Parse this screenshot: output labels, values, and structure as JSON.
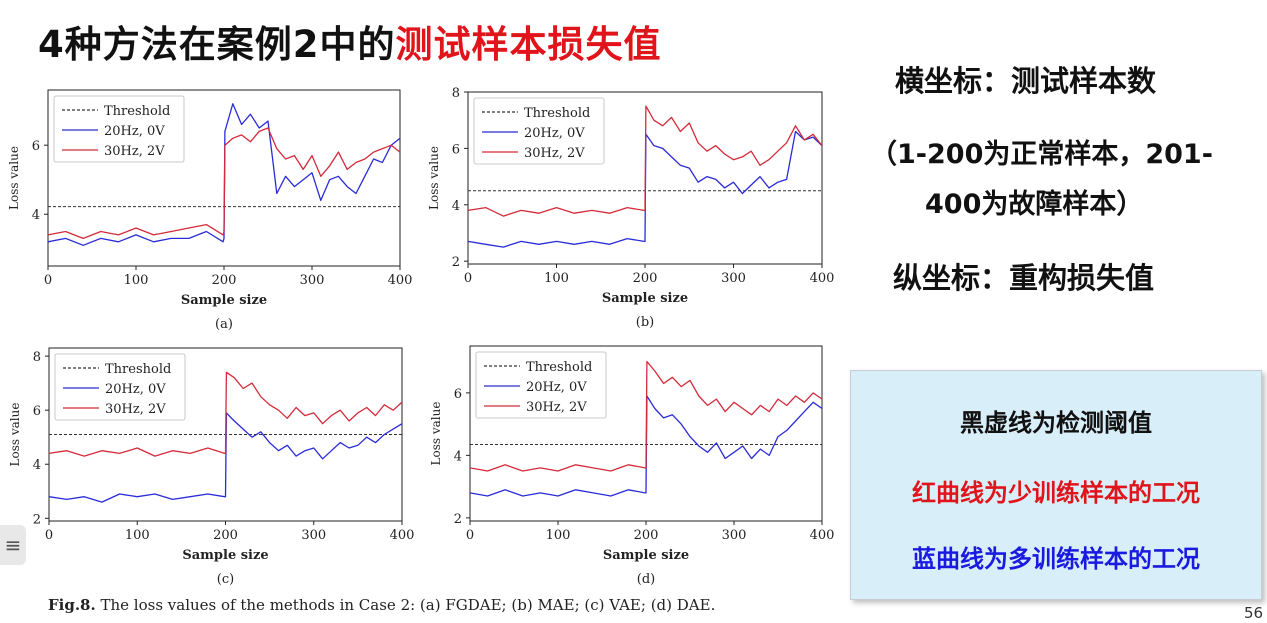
{
  "slide": {
    "title_part1": "4种方法在案例2中的",
    "title_part2": "测试样本损失值",
    "note_x1": "横坐标：测试样本数",
    "note_x2": "（1-200为正常样本，201-",
    "note_x3": "400为故障样本）",
    "note_y": "纵坐标：重构损失值",
    "legend_black": "黑虚线为检测阈值",
    "legend_red": "红曲线为少训练样本的工况",
    "legend_blue": "蓝曲线为多训练样本的工况",
    "caption_bold": "Fig.8.",
    "caption_rest": " The loss values of the methods in Case 2: (a) FGDAE; (b) MAE; (c) VAE; (d) DAE.",
    "page_number": "56",
    "menu_icon": "≡"
  },
  "colors": {
    "title_red": "#e0141a",
    "red_series": "#d42a3a",
    "blue_series": "#2a2bd8",
    "threshold": "#333333",
    "legend_box_bg": "#d8eef8"
  },
  "chart_data": [
    {
      "type": "line",
      "panel_label": "(a)",
      "xlabel": "Sample size",
      "ylabel": "Loss value",
      "xlim": [
        0,
        400
      ],
      "ylim": [
        2.5,
        7.6
      ],
      "xticks": [
        0,
        100,
        200,
        300,
        400
      ],
      "yticks": [
        4,
        6
      ],
      "threshold": 4.22,
      "legend": [
        "Threshold",
        "20Hz, 0V",
        "30Hz, 2V"
      ],
      "legend_position": "top-left",
      "series": [
        {
          "name": "20Hz, 0V",
          "color": "#2a2bd8",
          "x": [
            0,
            20,
            40,
            60,
            80,
            100,
            120,
            140,
            160,
            180,
            199,
            200,
            201,
            210,
            220,
            230,
            240,
            250,
            260,
            270,
            280,
            290,
            300,
            310,
            320,
            330,
            340,
            350,
            360,
            370,
            380,
            390,
            400
          ],
          "y": [
            3.2,
            3.3,
            3.1,
            3.3,
            3.2,
            3.4,
            3.2,
            3.3,
            3.3,
            3.5,
            3.2,
            3.3,
            6.4,
            7.2,
            6.6,
            6.9,
            6.5,
            6.7,
            4.6,
            5.1,
            4.8,
            5.0,
            5.2,
            4.4,
            5.0,
            5.1,
            4.8,
            4.6,
            5.1,
            5.6,
            5.5,
            6.0,
            6.2
          ]
        },
        {
          "name": "30Hz, 2V",
          "color": "#d42a3a",
          "x": [
            0,
            20,
            40,
            60,
            80,
            100,
            120,
            140,
            160,
            180,
            199,
            200,
            201,
            210,
            220,
            230,
            240,
            250,
            260,
            270,
            280,
            290,
            300,
            310,
            320,
            330,
            340,
            350,
            360,
            370,
            380,
            390,
            400
          ],
          "y": [
            3.4,
            3.5,
            3.3,
            3.5,
            3.4,
            3.6,
            3.4,
            3.5,
            3.6,
            3.7,
            3.4,
            3.5,
            6.0,
            6.2,
            6.3,
            6.1,
            6.4,
            6.5,
            5.9,
            5.6,
            5.7,
            5.3,
            5.7,
            5.1,
            5.4,
            5.8,
            5.3,
            5.5,
            5.6,
            5.8,
            5.9,
            6.0,
            5.8
          ]
        }
      ]
    },
    {
      "type": "line",
      "panel_label": "(b)",
      "xlabel": "Sample size",
      "ylabel": "Loss value",
      "xlim": [
        0,
        400
      ],
      "ylim": [
        1.9,
        8.0
      ],
      "xticks": [
        0,
        100,
        200,
        300,
        400
      ],
      "yticks": [
        2,
        4,
        6,
        8
      ],
      "threshold": 4.5,
      "legend": [
        "Threshold",
        "20Hz, 0V",
        "30Hz, 2V"
      ],
      "legend_position": "top-left",
      "series": [
        {
          "name": "20Hz, 0V",
          "color": "#2a2bd8",
          "x": [
            0,
            20,
            40,
            60,
            80,
            100,
            120,
            140,
            160,
            180,
            199,
            200,
            201,
            210,
            220,
            230,
            240,
            250,
            260,
            270,
            280,
            290,
            300,
            310,
            320,
            330,
            340,
            350,
            360,
            370,
            380,
            390,
            400
          ],
          "y": [
            2.7,
            2.6,
            2.5,
            2.7,
            2.6,
            2.7,
            2.6,
            2.7,
            2.6,
            2.8,
            2.7,
            2.7,
            6.5,
            6.1,
            6.0,
            5.7,
            5.4,
            5.3,
            4.8,
            5.0,
            4.9,
            4.6,
            4.8,
            4.4,
            4.7,
            5.0,
            4.6,
            4.8,
            4.9,
            6.6,
            6.3,
            6.4,
            6.1
          ]
        },
        {
          "name": "30Hz, 2V",
          "color": "#d42a3a",
          "x": [
            0,
            20,
            40,
            60,
            80,
            100,
            120,
            140,
            160,
            180,
            199,
            200,
            201,
            210,
            220,
            230,
            240,
            250,
            260,
            270,
            280,
            290,
            300,
            310,
            320,
            330,
            340,
            350,
            360,
            370,
            380,
            390,
            400
          ],
          "y": [
            3.8,
            3.9,
            3.6,
            3.8,
            3.7,
            3.9,
            3.7,
            3.8,
            3.7,
            3.9,
            3.8,
            3.8,
            7.5,
            7.0,
            6.8,
            7.1,
            6.6,
            6.9,
            6.2,
            5.9,
            6.1,
            5.8,
            5.6,
            5.7,
            5.9,
            5.4,
            5.6,
            5.9,
            6.2,
            6.8,
            6.3,
            6.5,
            6.1
          ]
        }
      ]
    },
    {
      "type": "line",
      "panel_label": "(c)",
      "xlabel": "Sample size",
      "ylabel": "Loss value",
      "xlim": [
        0,
        400
      ],
      "ylim": [
        1.9,
        8.3
      ],
      "xticks": [
        0,
        100,
        200,
        300,
        400
      ],
      "yticks": [
        2,
        4,
        6,
        8
      ],
      "threshold": 5.1,
      "legend": [
        "Threshold",
        "20Hz, 0V",
        "30Hz, 2V"
      ],
      "legend_position": "top-left",
      "series": [
        {
          "name": "20Hz, 0V",
          "color": "#2a2bd8",
          "x": [
            0,
            20,
            40,
            60,
            80,
            100,
            120,
            140,
            160,
            180,
            199,
            200,
            201,
            210,
            220,
            230,
            240,
            250,
            260,
            270,
            280,
            290,
            300,
            310,
            320,
            330,
            340,
            350,
            360,
            370,
            380,
            390,
            400
          ],
          "y": [
            2.8,
            2.7,
            2.8,
            2.6,
            2.9,
            2.8,
            2.9,
            2.7,
            2.8,
            2.9,
            2.8,
            2.8,
            5.9,
            5.6,
            5.3,
            5.0,
            5.2,
            4.8,
            4.5,
            4.7,
            4.3,
            4.5,
            4.6,
            4.2,
            4.5,
            4.8,
            4.6,
            4.7,
            5.0,
            4.8,
            5.1,
            5.3,
            5.5
          ]
        },
        {
          "name": "30Hz, 2V",
          "color": "#d42a3a",
          "x": [
            0,
            20,
            40,
            60,
            80,
            100,
            120,
            140,
            160,
            180,
            199,
            200,
            201,
            210,
            220,
            230,
            240,
            250,
            260,
            270,
            280,
            290,
            300,
            310,
            320,
            330,
            340,
            350,
            360,
            370,
            380,
            390,
            400
          ],
          "y": [
            4.4,
            4.5,
            4.3,
            4.5,
            4.4,
            4.6,
            4.3,
            4.5,
            4.4,
            4.6,
            4.4,
            4.4,
            7.4,
            7.2,
            6.8,
            7.0,
            6.5,
            6.2,
            6.0,
            5.7,
            6.1,
            5.8,
            5.9,
            5.5,
            5.8,
            6.0,
            5.6,
            5.9,
            6.1,
            5.8,
            6.2,
            6.0,
            6.3
          ]
        }
      ]
    },
    {
      "type": "line",
      "panel_label": "(d)",
      "xlabel": "Sample size",
      "ylabel": "Loss value",
      "xlim": [
        0,
        400
      ],
      "ylim": [
        1.9,
        7.5
      ],
      "xticks": [
        0,
        100,
        200,
        300,
        400
      ],
      "yticks": [
        2,
        4,
        6
      ],
      "threshold": 4.35,
      "legend": [
        "Threshold",
        "20Hz, 0V",
        "30Hz, 2V"
      ],
      "legend_position": "top-left",
      "series": [
        {
          "name": "20Hz, 0V",
          "color": "#2a2bd8",
          "x": [
            0,
            20,
            40,
            60,
            80,
            100,
            120,
            140,
            160,
            180,
            199,
            200,
            201,
            210,
            220,
            230,
            240,
            250,
            260,
            270,
            280,
            290,
            300,
            310,
            320,
            330,
            340,
            350,
            360,
            370,
            380,
            390,
            400
          ],
          "y": [
            2.8,
            2.7,
            2.9,
            2.7,
            2.8,
            2.7,
            2.9,
            2.8,
            2.7,
            2.9,
            2.8,
            2.8,
            5.9,
            5.5,
            5.2,
            5.3,
            5.0,
            4.6,
            4.3,
            4.1,
            4.4,
            3.9,
            4.1,
            4.3,
            3.9,
            4.2,
            4.0,
            4.6,
            4.8,
            5.1,
            5.4,
            5.7,
            5.5
          ]
        },
        {
          "name": "30Hz, 2V",
          "color": "#d42a3a",
          "x": [
            0,
            20,
            40,
            60,
            80,
            100,
            120,
            140,
            160,
            180,
            199,
            200,
            201,
            210,
            220,
            230,
            240,
            250,
            260,
            270,
            280,
            290,
            300,
            310,
            320,
            330,
            340,
            350,
            360,
            370,
            380,
            390,
            400
          ],
          "y": [
            3.6,
            3.5,
            3.7,
            3.5,
            3.6,
            3.5,
            3.7,
            3.6,
            3.5,
            3.7,
            3.6,
            3.6,
            7.0,
            6.7,
            6.3,
            6.5,
            6.2,
            6.4,
            5.9,
            5.6,
            5.8,
            5.4,
            5.7,
            5.5,
            5.3,
            5.6,
            5.4,
            5.8,
            5.6,
            5.9,
            5.7,
            6.0,
            5.8
          ]
        }
      ]
    }
  ]
}
